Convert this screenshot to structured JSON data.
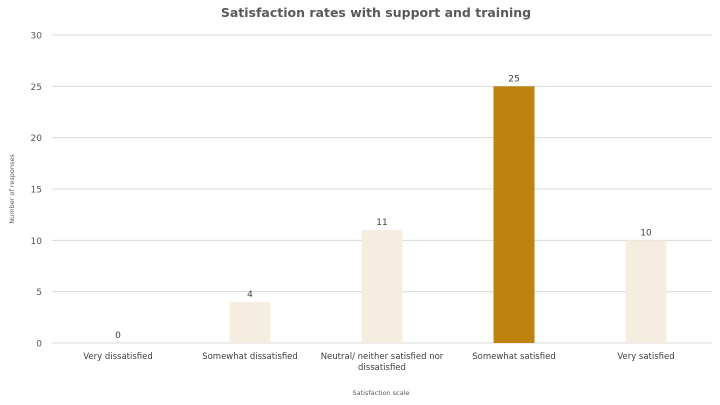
{
  "chart_data": {
    "type": "bar",
    "title": "Satisfaction rates with support and training",
    "xlabel": "Satisfaction scale",
    "ylabel": "Number of responses",
    "ylim": [
      0,
      30
    ],
    "yticks": [
      0,
      5,
      10,
      15,
      20,
      25,
      30
    ],
    "grid": true,
    "categories": [
      [
        "Very dissatisfied"
      ],
      [
        "Somewhat dissatisfied"
      ],
      [
        "Neutral/ neither satisfied nor",
        "dissatisfied"
      ],
      [
        "Somewhat satisfied"
      ],
      [
        "Very satisfied"
      ]
    ],
    "values": [
      0,
      4,
      11,
      25,
      10
    ],
    "data_labels": [
      "0",
      "4",
      "11",
      "25",
      "10"
    ],
    "colors": [
      "#f5ede0",
      "#f5ede0",
      "#f5ede0",
      "#c0820f",
      "#f5ede0"
    ],
    "gridline_color": "#d9d9d9"
  }
}
